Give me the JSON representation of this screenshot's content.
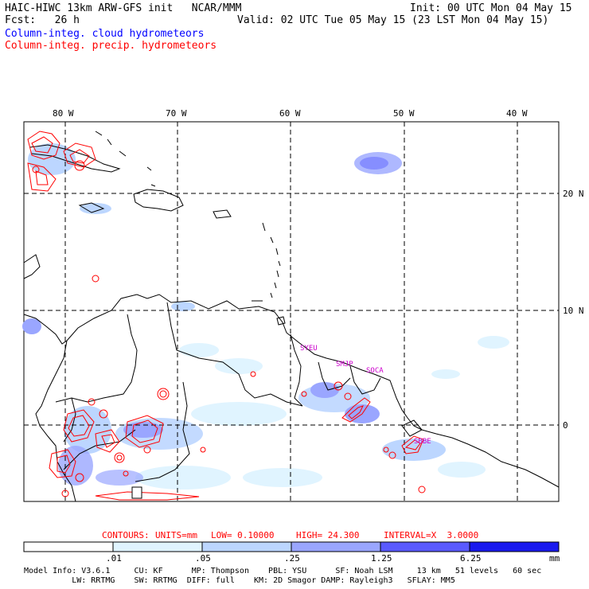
{
  "header": {
    "left_line1": "HAIC-HIWC 13km ARW-GFS init   NCAR/MMM",
    "left_line2": "Fcst:   26 h",
    "right_line1": "Init: 00 UTC Mon 04 May 15",
    "right_line2": "Valid: 02 UTC Tue 05 May 15 (23 LST Mon 04 May 15)",
    "legend_cloud": "Column-integ. cloud hydrometeors",
    "legend_precip": "Column-integ. precip. hydrometeors"
  },
  "map": {
    "lon_labels": [
      "80 W",
      "70 W",
      "60 W",
      "50 W",
      "40 W"
    ],
    "lat_labels": [
      "20 N",
      "10 N",
      "0"
    ],
    "station_labels": [
      "SYEU",
      "SMJP",
      "SOCA",
      "SBBE"
    ],
    "colors": {
      "coast": "#000000",
      "grid": "#000000",
      "precip_contour": "#ff0000",
      "station": "#cc00cc"
    }
  },
  "contour_info": {
    "contours_label": "CONTOURS:",
    "units": "UNITS=mm",
    "low": "LOW= 0.10000",
    "high": "HIGH= 24.300",
    "interval": "INTERVAL=X  3.0000"
  },
  "colorbar": {
    "tick_labels": [
      ".01",
      ".05",
      ".25",
      "1.25",
      "6.25"
    ],
    "unit": "mm",
    "colors": [
      "#ffffff",
      "#e0f4ff",
      "#bcd6ff",
      "#9aa6ff",
      "#6a72ff",
      "#3a3aff",
      "#0000ee"
    ]
  },
  "footer": {
    "line1": "Model Info: V3.6.1     CU: KF      MP: Thompson    PBL: YSU      SF: Noah LSM     13 km   51 levels   60 sec",
    "line2": "          LW: RRTMG    SW: RRTMG  DIFF: full    KM: 2D Smagor DAMP: Rayleigh3   SFLAY: MM5"
  }
}
